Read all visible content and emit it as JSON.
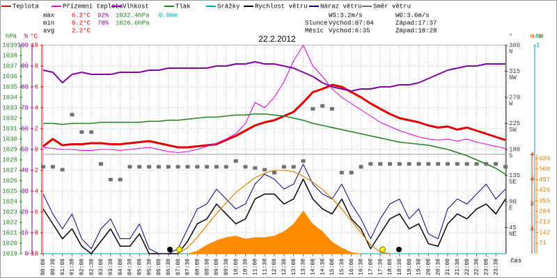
{
  "chart_data": {
    "type": "line",
    "title": "22.2.2012",
    "x_axis_label": "čas",
    "x": [
      0,
      0.5,
      1,
      1.5,
      2,
      2.5,
      3,
      3.5,
      4,
      4.5,
      5,
      5.5,
      6,
      6.5,
      7,
      7.5,
      8,
      8.5,
      9,
      9.5,
      10,
      10.5,
      11,
      11.5,
      12,
      12.5,
      13,
      13.5,
      14,
      14.5,
      15,
      15.5,
      16,
      16.5,
      17,
      17.5,
      18,
      18.5,
      19,
      19.5,
      20,
      20.5,
      21,
      21.5,
      22,
      22.5,
      23,
      23.5,
      24
    ],
    "xlim": [
      0,
      24
    ],
    "xticks": [
      {
        "value": 0,
        "label": "00:00"
      },
      {
        "value": 0.5,
        "label": "00:30"
      },
      {
        "value": 1,
        "label": "01:00"
      },
      {
        "value": 1.5,
        "label": "01:30"
      },
      {
        "value": 2,
        "label": "02:00"
      },
      {
        "value": 2.5,
        "label": "02:30"
      },
      {
        "value": 3,
        "label": "03:00"
      },
      {
        "value": 3.5,
        "label": "03:30"
      },
      {
        "value": 4,
        "label": "04:00"
      },
      {
        "value": 4.5,
        "label": "04:30"
      },
      {
        "value": 5,
        "label": "05:00"
      },
      {
        "value": 5.5,
        "label": "05:30"
      },
      {
        "value": 6,
        "label": "06:00"
      },
      {
        "value": 6.5,
        "label": "06:30"
      },
      {
        "value": 7,
        "label": "07:00"
      },
      {
        "value": 7.5,
        "label": "07:30"
      },
      {
        "value": 8,
        "label": "08:00"
      },
      {
        "value": 8.5,
        "label": "08:30"
      },
      {
        "value": 9,
        "label": "09:00"
      },
      {
        "value": 9.5,
        "label": "09:30"
      },
      {
        "value": 10,
        "label": "10:00"
      },
      {
        "value": 10.5,
        "label": "10:30"
      },
      {
        "value": 11,
        "label": "11:00"
      },
      {
        "value": 11.5,
        "label": "11:30"
      },
      {
        "value": 12,
        "label": "12:00"
      },
      {
        "value": 12.5,
        "label": "12:30"
      },
      {
        "value": 13,
        "label": "13:00"
      },
      {
        "value": 13.5,
        "label": "13:30"
      },
      {
        "value": 14,
        "label": "14:00"
      },
      {
        "value": 14.5,
        "label": "14:30"
      },
      {
        "value": 15,
        "label": "15:00"
      },
      {
        "value": 15.5,
        "label": "15:30"
      },
      {
        "value": 16,
        "label": "16:00"
      },
      {
        "value": 16.5,
        "label": "16:30"
      },
      {
        "value": 17,
        "label": "17:00"
      },
      {
        "value": 17.5,
        "label": "17:30"
      },
      {
        "value": 18,
        "label": "18:00"
      },
      {
        "value": 18.5,
        "label": "18:30"
      },
      {
        "value": 19,
        "label": "19:00"
      },
      {
        "value": 19.5,
        "label": "19:30"
      },
      {
        "value": 20,
        "label": "20:00"
      },
      {
        "value": 20.5,
        "label": "20:30"
      },
      {
        "value": 21,
        "label": "21:00"
      },
      {
        "value": 21.5,
        "label": "21:30"
      },
      {
        "value": 22,
        "label": "22:00"
      },
      {
        "value": 22.5,
        "label": "22:30"
      },
      {
        "value": 23,
        "label": "23:00"
      },
      {
        "value": 23.5,
        "label": "23:30"
      }
    ],
    "grid": true,
    "axes": {
      "hpa": {
        "label": "hPa",
        "color": "#208020",
        "lim": [
          1019,
          1039
        ],
        "ticks": [
          1039,
          1038,
          1037,
          1036,
          1035,
          1034,
          1033,
          1032,
          1031,
          1030,
          1029,
          1028,
          1027,
          1026,
          1025,
          1024,
          1023,
          1022,
          1021,
          1020,
          1019
        ]
      },
      "pct": {
        "label": "%",
        "color": "#8000a0",
        "lim": [
          0,
          100
        ],
        "ticks": [
          100,
          90,
          80,
          70,
          60,
          50,
          40,
          30,
          20,
          10,
          0
        ]
      },
      "temp": {
        "label": "°C",
        "color": "#e00000",
        "lim": [
          -10,
          10
        ],
        "ticks": [
          10,
          8,
          6,
          4,
          2,
          0,
          -2,
          -4,
          -6,
          -8,
          -10
        ]
      },
      "deg": {
        "label": "°",
        "color": "#404040",
        "lim": [
          0,
          360
        ],
        "ticks": [
          {
            "value": 360,
            "label": "360",
            "compass": "N"
          },
          {
            "value": 315,
            "label": "315",
            "compass": "NW"
          },
          {
            "value": 270,
            "label": "270",
            "compass": "W"
          },
          {
            "value": 225,
            "label": "225",
            "compass": "SW"
          },
          {
            "value": 180,
            "label": "180",
            "compass": "S"
          },
          {
            "value": 135,
            "label": "135",
            "compass": "SE"
          },
          {
            "value": 90,
            "label": "90",
            "compass": "E"
          },
          {
            "value": 45,
            "label": "45",
            "compass": "NE"
          }
        ]
      },
      "ms": {
        "label": "m/s",
        "color": "#c04000",
        "lim": [
          0,
          4
        ],
        "ticks": [
          4,
          3,
          2,
          1
        ]
      },
      "mm": {
        "label": "mm",
        "color": "#00a0c0",
        "lim": [
          0,
          1
        ],
        "ticks": [
          1
        ]
      },
      "w": {
        "label": "W",
        "color": "#e08000",
        "lim": [
          0,
          667
        ],
        "ticks": [
          639,
          568,
          497,
          426,
          355,
          284,
          213,
          142,
          71
        ]
      }
    },
    "series": [
      {
        "name": "Teplota",
        "color": "#e00000",
        "axis": "temp",
        "style": "line",
        "width": 3,
        "values": [
          0.3,
          1.0,
          0.4,
          0.5,
          0.5,
          0.6,
          0.6,
          0.5,
          0.5,
          0.6,
          0.7,
          0.8,
          0.6,
          0.4,
          0.2,
          0.2,
          0.3,
          0.4,
          0.5,
          0.9,
          1.3,
          1.8,
          2.3,
          2.6,
          2.8,
          3.2,
          3.6,
          4.5,
          5.5,
          5.8,
          6.2,
          6.0,
          5.5,
          5.0,
          4.4,
          3.9,
          3.4,
          3.0,
          2.8,
          2.6,
          2.3,
          2.1,
          2.2,
          1.9,
          2.1,
          1.8,
          1.5,
          1.2,
          0.9
        ]
      },
      {
        "name": "Přízemní teplota",
        "color": "#e000e0",
        "axis": "temp",
        "style": "line",
        "width": 1,
        "values": [
          0.2,
          0.1,
          0,
          0,
          -0.1,
          -0.1,
          0,
          0,
          -0.1,
          0,
          0.1,
          0.2,
          0,
          -0.2,
          -0.3,
          -0.2,
          0,
          0.3,
          0.6,
          1.0,
          1.5,
          2.5,
          4.5,
          4.0,
          5.0,
          6.5,
          8.5,
          10.0,
          8.0,
          7.0,
          5.8,
          5.0,
          4.4,
          3.8,
          3.2,
          2.6,
          2.2,
          1.8,
          1.5,
          1.2,
          1.0,
          0.9,
          1.0,
          0.8,
          1.0,
          0.7,
          0.5,
          0.3,
          0.1
        ]
      },
      {
        "name": "Vlhkost",
        "color": "#8000a0",
        "axis": "pct",
        "style": "line",
        "width": 2,
        "values": [
          88,
          87,
          82,
          86,
          87,
          86,
          86,
          86,
          87,
          87,
          87,
          88,
          88,
          89,
          89,
          89,
          89,
          89,
          90,
          90,
          91,
          91,
          92,
          91,
          91,
          90,
          89,
          87,
          85,
          82,
          80,
          79,
          78,
          79,
          79,
          80,
          80,
          81,
          81,
          82,
          84,
          86,
          88,
          89,
          90,
          90,
          91,
          91,
          91
        ]
      },
      {
        "name": "Tlak",
        "color": "#208020",
        "axis": "hpa",
        "style": "line",
        "width": 1.5,
        "values": [
          1031.5,
          1031.5,
          1031.4,
          1031.5,
          1031.5,
          1031.5,
          1031.6,
          1031.6,
          1031.6,
          1031.6,
          1031.6,
          1031.7,
          1031.7,
          1031.8,
          1031.8,
          1031.9,
          1032.0,
          1032.1,
          1032.1,
          1032.2,
          1032.3,
          1032.3,
          1032.4,
          1032.4,
          1032.3,
          1032.2,
          1032.0,
          1031.8,
          1031.5,
          1031.3,
          1031.1,
          1030.9,
          1030.7,
          1030.5,
          1030.3,
          1030.1,
          1029.9,
          1029.7,
          1029.6,
          1029.5,
          1029.4,
          1029.2,
          1029.0,
          1028.7,
          1028.4,
          1028.0,
          1027.6,
          1027.2,
          1026.6
        ]
      },
      {
        "name": "Srážky",
        "color": "#00a0c0",
        "axis": "mm",
        "style": "line",
        "width": 1,
        "values": [
          0,
          0,
          0,
          0,
          0,
          0,
          0,
          0,
          0,
          0,
          0,
          0,
          0,
          0,
          0,
          0,
          0,
          0,
          0,
          0,
          0,
          0,
          0,
          0,
          0,
          0,
          0,
          0,
          0,
          0,
          0,
          0,
          0,
          0,
          0,
          0,
          0,
          0,
          0,
          0,
          0,
          0,
          0,
          0,
          0,
          0,
          0,
          0,
          0
        ]
      },
      {
        "name": "Rychlost větru",
        "color": "#000000",
        "axis": "ms",
        "style": "line",
        "width": 1.5,
        "values": [
          1.8,
          1.2,
          0.6,
          1.0,
          0.3,
          0.0,
          0.5,
          1.0,
          0.3,
          0.3,
          0.8,
          0.0,
          0.0,
          0.0,
          0.0,
          0.5,
          1.2,
          1.4,
          2.0,
          1.6,
          1.2,
          1.4,
          2.2,
          2.4,
          2.4,
          2.0,
          2.2,
          3.0,
          2.2,
          1.8,
          1.6,
          2.2,
          1.4,
          1.0,
          0.2,
          0.8,
          1.4,
          1.6,
          1.0,
          1.2,
          0.4,
          0.3,
          1.2,
          1.6,
          1.4,
          1.8,
          2.0,
          1.6,
          2.2
        ]
      },
      {
        "name": "Náraz větru",
        "color": "#000080",
        "axis": "ms",
        "style": "line",
        "width": 1,
        "values": [
          2.4,
          1.6,
          1.0,
          1.6,
          0.6,
          0.2,
          1.0,
          1.4,
          0.6,
          0.6,
          1.2,
          0.2,
          0.0,
          0.0,
          0.2,
          1.0,
          1.8,
          2.0,
          2.6,
          2.2,
          1.8,
          2.0,
          2.8,
          3.2,
          3.0,
          2.6,
          2.8,
          3.6,
          2.8,
          2.4,
          2.2,
          2.8,
          2.0,
          1.4,
          0.6,
          1.4,
          2.0,
          2.2,
          1.4,
          1.8,
          0.8,
          0.6,
          1.8,
          2.2,
          2.0,
          2.4,
          2.8,
          2.2,
          2.6
        ]
      },
      {
        "name": "Směr větru",
        "color": "#707070",
        "axis": "deg",
        "style": "points",
        "values": [
          150,
          150,
          145,
          240,
          210,
          210,
          155,
          128,
          128,
          150,
          150,
          150,
          150,
          150,
          150,
          150,
          150,
          150,
          150,
          150,
          160,
          150,
          148,
          145,
          140,
          150,
          150,
          160,
          250,
          255,
          250,
          140,
          140,
          150,
          155,
          155,
          155,
          155,
          155,
          155,
          155,
          155,
          155,
          155,
          155,
          155,
          155,
          155,
          150
        ]
      },
      {
        "color": "#ff8c00",
        "axis": "w",
        "style": "area",
        "values": [
          0,
          0,
          0,
          0,
          0,
          0,
          0,
          0,
          0,
          0,
          0,
          0,
          0,
          0,
          0,
          0,
          20,
          60,
          90,
          110,
          120,
          100,
          110,
          110,
          120,
          150,
          200,
          290,
          200,
          150,
          80,
          40,
          10,
          0,
          0,
          0,
          0,
          0,
          0,
          0,
          0,
          0,
          0,
          0,
          0,
          0,
          0,
          0,
          0
        ]
      },
      {
        "color": "#e08000",
        "axis": "w",
        "style": "line",
        "width": 1.2,
        "values": [
          null,
          null,
          null,
          null,
          null,
          null,
          null,
          null,
          null,
          null,
          null,
          null,
          null,
          null,
          0,
          40,
          110,
          190,
          270,
          340,
          410,
          460,
          510,
          540,
          560,
          560,
          550,
          520,
          480,
          430,
          370,
          300,
          220,
          140,
          60,
          10,
          0,
          null,
          null,
          null,
          null,
          null,
          null,
          null,
          null,
          null,
          null,
          null,
          null
        ]
      }
    ],
    "sun_markers_x": [
      7.07,
      17.62
    ],
    "moon_markers_x": [
      6.58,
      18.47
    ],
    "stats": [
      {
        "label": "max",
        "cells": [
          {
            "text": "6.2°C",
            "color": "#e00000"
          },
          {
            "text": "92%",
            "color": "#8000a0"
          },
          {
            "text": "1032.4hPa",
            "color": "#208020"
          },
          {
            "text": "0.0mm",
            "color": "#00a0c0"
          }
        ]
      },
      {
        "label": "min",
        "cells": [
          {
            "text": "0.2°C",
            "color": "#e00000"
          },
          {
            "text": "78%",
            "color": "#8000a0"
          },
          {
            "text": "1026.6hPa",
            "color": "#208020"
          }
        ]
      },
      {
        "label": "avg",
        "cells": [
          {
            "text": "2.2°C",
            "color": "#e00000"
          }
        ]
      }
    ],
    "info": [
      [
        "",
        "WS:3.2m/s",
        "WG:3.6m/s"
      ],
      [
        "Slunce",
        "Východ:07:04",
        "Západ:17:37"
      ],
      [
        "Měsíc",
        "Východ:6:35",
        "Západ:18:28"
      ]
    ]
  }
}
